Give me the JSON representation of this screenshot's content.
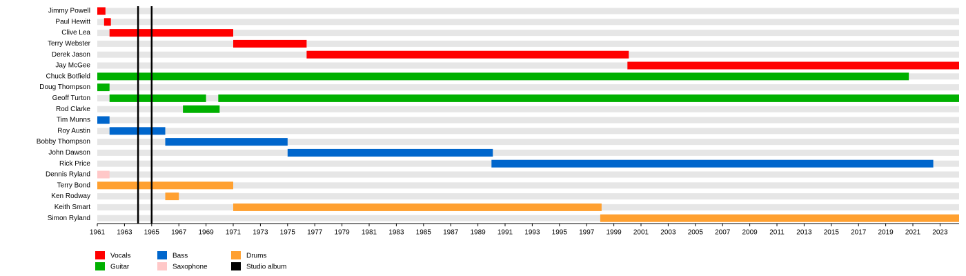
{
  "chart_data": {
    "type": "timeline",
    "xlim": [
      1961,
      2024.4
    ],
    "xticks": [
      1961,
      1963,
      1965,
      1967,
      1969,
      1971,
      1973,
      1975,
      1977,
      1979,
      1981,
      1983,
      1985,
      1987,
      1989,
      1991,
      1993,
      1995,
      1997,
      1999,
      2001,
      2003,
      2005,
      2007,
      2009,
      2011,
      2013,
      2015,
      2017,
      2019,
      2021,
      2023
    ],
    "series": [
      {
        "name": "Vocals",
        "color": "#ff0000"
      },
      {
        "name": "Guitar",
        "color": "#00b000"
      },
      {
        "name": "Bass",
        "color": "#0066cc"
      },
      {
        "name": "Saxophone",
        "color": "#ffc8c8"
      },
      {
        "name": "Drums",
        "color": "#ffa030"
      }
    ],
    "albums": {
      "name": "Studio album",
      "color": "#000000",
      "values": [
        1964,
        1965
      ]
    },
    "members": [
      {
        "name": "Jimmy Powell",
        "role": "Vocals",
        "periods": [
          [
            1961,
            1961.6
          ]
        ]
      },
      {
        "name": "Paul Hewitt",
        "role": "Vocals",
        "periods": [
          [
            1961.5,
            1962
          ]
        ]
      },
      {
        "name": "Clive Lea",
        "role": "Vocals",
        "periods": [
          [
            1961.9,
            1971
          ]
        ]
      },
      {
        "name": "Terry Webster",
        "role": "Vocals",
        "periods": [
          [
            1971,
            1976.4
          ]
        ]
      },
      {
        "name": "Derek Jason",
        "role": "Vocals",
        "periods": [
          [
            1976.4,
            2000.1
          ]
        ]
      },
      {
        "name": "Jay McGee",
        "role": "Vocals",
        "periods": [
          [
            2000,
            2024.4
          ]
        ]
      },
      {
        "name": "Chuck Botfield",
        "role": "Guitar",
        "periods": [
          [
            1961,
            2020.7
          ]
        ]
      },
      {
        "name": "Doug Thompson",
        "role": "Guitar",
        "periods": [
          [
            1961,
            1961.9
          ]
        ]
      },
      {
        "name": "Geoff Turton",
        "role": "Guitar",
        "periods": [
          [
            1961.9,
            1969
          ],
          [
            1969.9,
            2024.4
          ]
        ]
      },
      {
        "name": "Rod Clarke",
        "role": "Guitar",
        "periods": [
          [
            1967.3,
            1970
          ]
        ]
      },
      {
        "name": "Tim Munns",
        "role": "Bass",
        "periods": [
          [
            1961,
            1961.9
          ]
        ]
      },
      {
        "name": "Roy Austin",
        "role": "Bass",
        "periods": [
          [
            1961.9,
            1966
          ]
        ]
      },
      {
        "name": "Bobby Thompson",
        "role": "Bass",
        "periods": [
          [
            1966,
            1975
          ]
        ]
      },
      {
        "name": "John Dawson",
        "role": "Bass",
        "periods": [
          [
            1975,
            1990.1
          ]
        ]
      },
      {
        "name": "Rick Price",
        "role": "Bass",
        "periods": [
          [
            1990,
            2022.5
          ]
        ]
      },
      {
        "name": "Dennis Ryland",
        "role": "Saxophone",
        "periods": [
          [
            1961,
            1961.9
          ]
        ]
      },
      {
        "name": "Terry Bond",
        "role": "Drums",
        "periods": [
          [
            1961,
            1971
          ]
        ]
      },
      {
        "name": "Ken Rodway",
        "role": "Drums",
        "periods": [
          [
            1966,
            1967
          ]
        ]
      },
      {
        "name": "Keith Smart",
        "role": "Drums",
        "periods": [
          [
            1971,
            1998.1
          ]
        ]
      },
      {
        "name": "Simon Ryland",
        "role": "Drums",
        "periods": [
          [
            1998,
            2024.4
          ]
        ]
      }
    ]
  }
}
